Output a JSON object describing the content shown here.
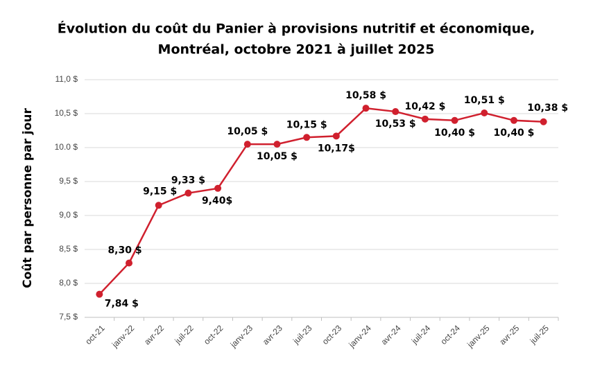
{
  "chart_data": {
    "type": "line",
    "title": [
      "Évolution du coût du Panier à provisions nutritif et économique,",
      "Montréal, octobre 2021 à juillet 2025"
    ],
    "y_label": "Coût par personne par jour",
    "categories": [
      "oct-21",
      "janv-22",
      "avr-22",
      "juil-22",
      "oct-22",
      "janv-23",
      "avr-23",
      "juil-23",
      "oct-23",
      "janv-24",
      "avr-24",
      "juil-24",
      "oct-24",
      "janv-25",
      "avr-25",
      "juil-25"
    ],
    "series": [
      {
        "name": "Coût",
        "color": "#d0202e",
        "values": [
          7.84,
          8.3,
          9.15,
          9.33,
          9.4,
          10.05,
          10.05,
          10.15,
          10.17,
          10.58,
          10.53,
          10.42,
          10.4,
          10.51,
          10.4,
          10.38
        ],
        "value_labels": [
          "7,84 $",
          "8,30 $",
          "9,15 $",
          "9,33 $",
          "9,40$",
          "10,05 $",
          "10,05 $",
          "10,15 $",
          "10,17$",
          "10,58 $",
          "10,53 $",
          "10,42 $",
          "10,40 $",
          "10,51 $",
          "10,40 $",
          "10,38 $"
        ]
      }
    ],
    "ylim": [
      7.5,
      11.0
    ],
    "yticks": [
      {
        "value": 7.5,
        "label": "7,5 $"
      },
      {
        "value": 8.0,
        "label": "8,0 $"
      },
      {
        "value": 8.5,
        "label": "8,5 $"
      },
      {
        "value": 9.0,
        "label": "9,0 $"
      },
      {
        "value": 9.5,
        "label": "9,5 $"
      },
      {
        "value": 10.0,
        "label": "10.0 $"
      },
      {
        "value": 10.5,
        "label": "10,5 $"
      },
      {
        "value": 11.0,
        "label": "11,0 $"
      }
    ],
    "grid": true
  }
}
